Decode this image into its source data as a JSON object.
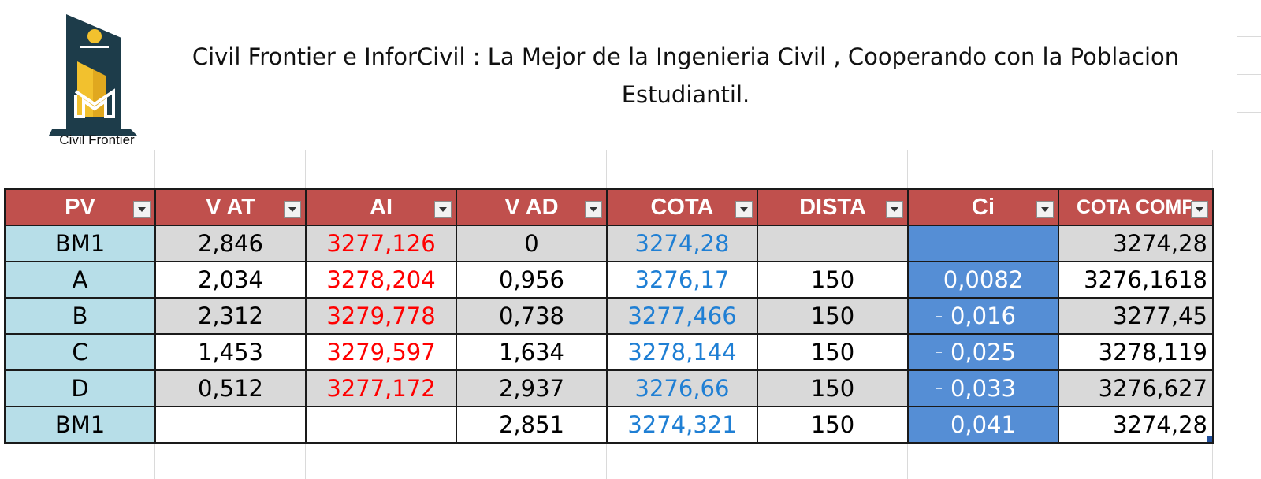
{
  "header": {
    "logo_text": "Civil Frontier",
    "title": "Civil Frontier e InforCivil : La Mejor de la Ingenieria Civil , Cooperando con la Poblacion Estudiantil."
  },
  "table": {
    "columns": [
      "PV",
      "V AT",
      "AI",
      "V AD",
      "COTA",
      "DISTA",
      "Ci",
      "COTA COMP"
    ],
    "rows": [
      {
        "pv": "BM1",
        "vat": "2,846",
        "ai": "3277,126",
        "vad": "0",
        "cota": "3274,28",
        "dista": "",
        "ci": "",
        "cota_comp": "3274,28"
      },
      {
        "pv": "A",
        "vat": "2,034",
        "ai": "3278,204",
        "vad": "0,956",
        "cota": "3276,17",
        "dista": "150",
        "ci": "0,0082",
        "cota_comp": "3276,1618"
      },
      {
        "pv": "B",
        "vat": "2,312",
        "ai": "3279,778",
        "vad": "0,738",
        "cota": "3277,466",
        "dista": "150",
        "ci": "0,016",
        "cota_comp": "3277,45"
      },
      {
        "pv": "C",
        "vat": "1,453",
        "ai": "3279,597",
        "vad": "1,634",
        "cota": "3278,144",
        "dista": "150",
        "ci": "0,025",
        "cota_comp": "3278,119"
      },
      {
        "pv": "D",
        "vat": "0,512",
        "ai": "3277,172",
        "vad": "2,937",
        "cota": "3276,66",
        "dista": "150",
        "ci": "0,033",
        "cota_comp": "3276,627"
      },
      {
        "pv": "BM1",
        "vat": "",
        "ai": "",
        "vad": "2,851",
        "cota": "3274,321",
        "dista": "150",
        "ci": "0,041",
        "cota_comp": "3274,28"
      }
    ]
  },
  "colors": {
    "header_bg": "#c0504d",
    "pv_bg": "#b7dee8",
    "ci_bg": "#558ed5",
    "ai_text": "#ff0000",
    "cota_text": "#1f7fd4"
  }
}
